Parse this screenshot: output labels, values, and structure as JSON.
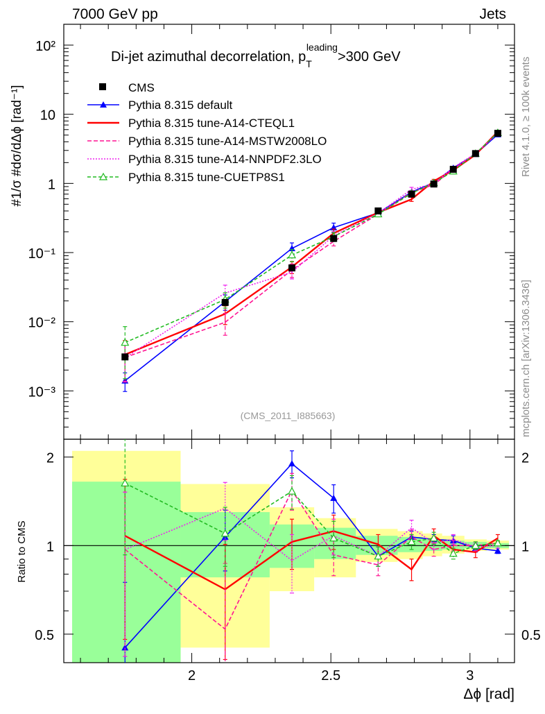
{
  "header": {
    "left": "7000 GeV pp",
    "right": "Jets"
  },
  "side_labels": {
    "rivet": "Rivet 4.1.0, ≥ 100k events",
    "mcplots": "mcplots.cern.ch [arXiv:1306.3436]"
  },
  "chart_data": {
    "type": "line",
    "title_main": "Di-jet azimuthal decorrelation, p",
    "title_sup": "leading",
    "title_sub": "T",
    "title_tail": ">300 GeV",
    "watermark": "(CMS_2011_I885663)",
    "xlabel": "Δϕ [rad]",
    "ylabel": "#1/σ #dσ/dΔϕ [rad⁻¹]",
    "ratio_ylabel": "Ratio to CMS",
    "xlim": [
      1.54,
      3.16
    ],
    "ylim": [
      0.0002,
      200
    ],
    "ratio_ylim": [
      0.4,
      2.3
    ],
    "x_ticks": [
      "2",
      "2.5",
      "3"
    ],
    "y_ticks": [
      "10⁻³",
      "10⁻²",
      "10⁻¹",
      "1",
      "10",
      "10²"
    ],
    "ratio_ticks": [
      "0.5",
      "1",
      "2"
    ],
    "x": [
      1.76,
      2.12,
      2.36,
      2.51,
      2.67,
      2.79,
      2.87,
      2.94,
      3.02,
      3.1
    ],
    "bin_edges": [
      1.57,
      1.96,
      2.28,
      2.44,
      2.59,
      2.74,
      2.83,
      2.9,
      2.98,
      3.06,
      3.14
    ],
    "band_inner": [
      [
        0.37,
        1.65
      ],
      [
        0.78,
        1.3
      ],
      [
        0.84,
        1.18
      ],
      [
        0.9,
        1.15
      ],
      [
        0.93,
        1.08
      ],
      [
        0.95,
        1.07
      ],
      [
        0.96,
        1.05
      ],
      [
        0.97,
        1.04
      ],
      [
        0.98,
        1.03
      ],
      [
        0.98,
        1.02
      ]
    ],
    "band_outer": [
      [
        0.35,
        2.1
      ],
      [
        0.45,
        1.62
      ],
      [
        0.7,
        1.35
      ],
      [
        0.78,
        1.24
      ],
      [
        0.88,
        1.14
      ],
      [
        0.9,
        1.12
      ],
      [
        0.92,
        1.1
      ],
      [
        0.94,
        1.08
      ],
      [
        0.96,
        1.05
      ],
      [
        0.97,
        1.04
      ]
    ],
    "data": {
      "name": "CMS",
      "values": [
        0.0031,
        0.019,
        0.06,
        0.16,
        0.4,
        0.7,
        0.98,
        1.6,
        2.7,
        5.3
      ]
    },
    "series": [
      {
        "name": "Pythia 8.315 default",
        "color": "#0000ff",
        "dash": "",
        "marker": "triangle-filled",
        "values": [
          0.0014,
          0.0195,
          0.115,
          0.23,
          0.375,
          0.75,
          1.03,
          1.67,
          2.65,
          5.1
        ],
        "ratio": [
          0.45,
          1.07,
          1.9,
          1.45,
          0.92,
          1.07,
          1.05,
          1.04,
          0.98,
          0.96
        ],
        "ratio_err": [
          0.3,
          0.25,
          0.2,
          0.16,
          0.07,
          0.05,
          0.04,
          0.04,
          0.03,
          0.02
        ]
      },
      {
        "name": "Pythia 8.315 tune-A14-CTEQL1",
        "color": "#ff0000",
        "dash": "",
        "marker": "none",
        "values": [
          0.00335,
          0.013,
          0.062,
          0.19,
          0.38,
          0.59,
          1.08,
          1.55,
          2.6,
          5.6
        ],
        "ratio": [
          1.08,
          0.71,
          1.03,
          1.12,
          1.01,
          0.83,
          1.08,
          0.97,
          0.95,
          1.06
        ],
        "ratio_err": [
          0.6,
          0.3,
          0.2,
          0.15,
          0.08,
          0.07,
          0.06,
          0.04,
          0.04,
          0.03
        ]
      },
      {
        "name": "Pythia 8.315 tune-A14-MSTW2008LO",
        "color": "#ff1493",
        "dash": "6,3",
        "marker": "none",
        "values": [
          0.00305,
          0.0098,
          0.056,
          0.145,
          0.36,
          0.74,
          0.96,
          1.6,
          2.7,
          5.4
        ],
        "ratio": [
          0.97,
          0.52,
          1.54,
          0.93,
          0.86,
          1.07,
          0.97,
          1.0,
          1.0,
          1.02
        ],
        "ratio_err": [
          0.55,
          0.35,
          0.22,
          0.14,
          0.07,
          0.06,
          0.05,
          0.04,
          0.03,
          0.02
        ]
      },
      {
        "name": "Pythia 8.315 tune-A14-NNPDF2.3LO",
        "color": "#ee22ee",
        "dash": "2,2",
        "marker": "none",
        "values": [
          0.003,
          0.026,
          0.052,
          0.175,
          0.37,
          0.82,
          0.99,
          1.7,
          2.7,
          5.3
        ],
        "ratio": [
          0.97,
          1.34,
          0.89,
          1.08,
          0.92,
          1.15,
          1.02,
          1.05,
          0.99,
          1.0
        ],
        "ratio_err": [
          0.55,
          0.3,
          0.2,
          0.15,
          0.07,
          0.07,
          0.05,
          0.04,
          0.03,
          0.02
        ]
      },
      {
        "name": "Pythia 8.315 tune-CUETP8S1",
        "color": "#22bb22",
        "dash": "5,3",
        "marker": "triangle-open",
        "values": [
          0.005,
          0.021,
          0.092,
          0.17,
          0.36,
          0.72,
          1.02,
          1.5,
          2.7,
          5.4
        ],
        "ratio": [
          1.63,
          1.1,
          1.53,
          1.06,
          0.92,
          1.03,
          1.06,
          0.94,
          1.0,
          1.02
        ],
        "ratio_err": [
          0.7,
          0.25,
          0.2,
          0.15,
          0.07,
          0.06,
          0.05,
          0.04,
          0.03,
          0.02
        ]
      }
    ]
  }
}
